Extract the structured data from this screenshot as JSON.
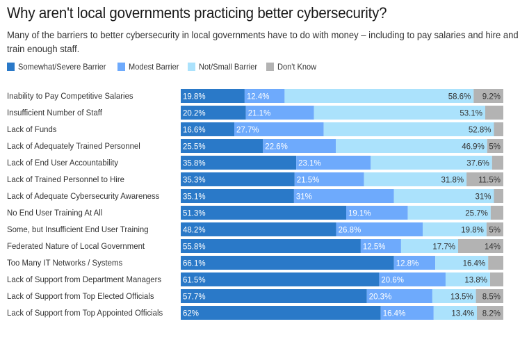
{
  "title": "Why aren't local governments practicing better cybersecurity?",
  "subtitle": "Many of the barriers to better cybersecurity in local governments have to do with money – including to pay salaries and hire and train enough staff.",
  "chart_data": {
    "type": "bar",
    "orientation": "horizontal",
    "stacked": true,
    "stack_to": 100,
    "title": "Why aren't local governments practicing better cybersecurity?",
    "xlabel": "",
    "ylabel": "",
    "xlim": [
      0,
      100
    ],
    "grid": false,
    "legend_position": "top-left",
    "categories": [
      "Inability to Pay Competitive Salaries",
      "Insufficient Number of Staff",
      "Lack of Funds",
      "Lack of Adequately Trained Personnel",
      "Lack of End User Accountability",
      "Lack of Trained Personnel to Hire",
      "Lack of Adequate Cybersecurity Awareness",
      "No End User Training At All",
      "Some, but Insufficient End User Training",
      "Federated Nature of Local Government",
      "Too Many IT Networks / Systems",
      "Lack of Support from Department Managers",
      "Lack of Support from Top Elected Officials",
      "Lack of Support from Top Appointed Officials"
    ],
    "series": [
      {
        "name": "Somewhat/Severe Barrier",
        "color": "#2a79c8",
        "label_color": "#ffffff",
        "values": [
          19.8,
          20.2,
          16.6,
          25.5,
          35.8,
          35.3,
          35.1,
          51.3,
          48.2,
          55.8,
          66.1,
          61.5,
          57.7,
          62
        ],
        "labels": [
          "19.8%",
          "20.2%",
          "16.6%",
          "25.5%",
          "35.8%",
          "35.3%",
          "35.1%",
          "51.3%",
          "48.2%",
          "55.8%",
          "66.1%",
          "61.5%",
          "57.7%",
          "62%"
        ]
      },
      {
        "name": "Modest Barrier",
        "color": "#6eaafc",
        "label_color": "#ffffff",
        "values": [
          12.4,
          21.1,
          27.7,
          22.6,
          23.1,
          21.5,
          31,
          19.1,
          26.8,
          12.5,
          12.8,
          20.6,
          20.3,
          16.4
        ],
        "labels": [
          "12.4%",
          "21.1%",
          "27.7%",
          "22.6%",
          "23.1%",
          "21.5%",
          "31%",
          "19.1%",
          "26.8%",
          "12.5%",
          "12.8%",
          "20.6%",
          "20.3%",
          "16.4%"
        ]
      },
      {
        "name": "Not/Small Barrier",
        "color": "#abe2fc",
        "label_color": "#333333",
        "label_align": "right",
        "values": [
          58.6,
          53.1,
          52.8,
          46.9,
          37.6,
          31.8,
          31,
          25.7,
          19.8,
          17.7,
          16.4,
          13.8,
          13.5,
          13.4
        ],
        "labels": [
          "58.6%",
          "53.1%",
          "52.8%",
          "46.9%",
          "37.6%",
          "31.8%",
          "31%",
          "25.7%",
          "19.8%",
          "17.7%",
          "16.4%",
          "13.8%",
          "13.5%",
          "13.4%"
        ]
      },
      {
        "name": "Don't Know",
        "color": "#b3b3b3",
        "label_color": "#333333",
        "label_align": "right",
        "values": [
          9.2,
          5.6,
          2.8,
          5,
          3.5,
          11.5,
          2.9,
          3.9,
          5,
          14,
          4.7,
          4.1,
          8.5,
          8.2
        ],
        "labels": [
          "9.2%",
          "",
          "",
          "5%",
          "",
          "11.5%",
          "",
          "",
          "5%",
          "14%",
          "",
          "",
          "8.5%",
          "8.2%"
        ]
      }
    ]
  }
}
